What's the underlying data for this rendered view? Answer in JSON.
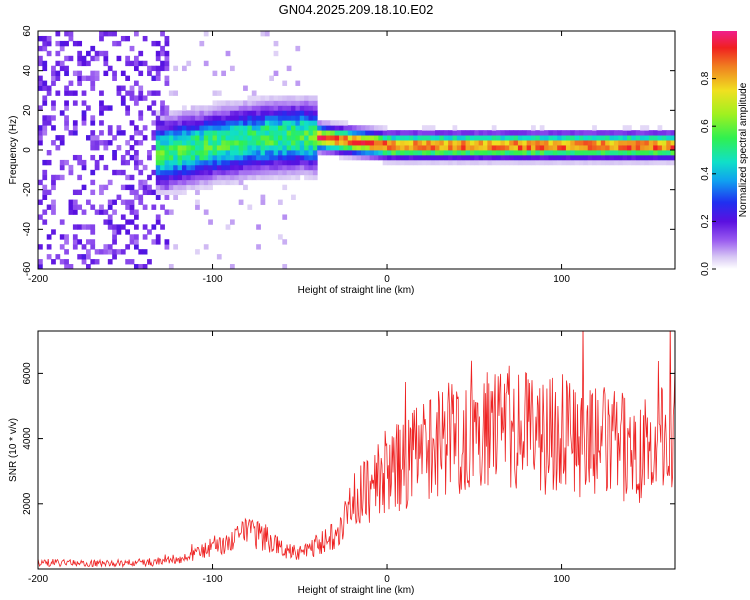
{
  "figure_title": "GN04.2025.209.18.10.E02",
  "chart_data": [
    {
      "type": "heatmap",
      "xlabel": "Height of straight line (km)",
      "ylabel": "Frequency (Hz)",
      "xlim": [
        -200,
        165
      ],
      "ylim": [
        -60,
        60
      ],
      "x_ticks": [
        -200,
        -100,
        0,
        100
      ],
      "y_ticks": [
        -60,
        -40,
        -20,
        0,
        20,
        40,
        60
      ],
      "colorbar": {
        "label": "Normalized spectral amplitude",
        "range": [
          0,
          1
        ],
        "ticks": [
          "0.0",
          "0.2",
          "0.4",
          "0.6",
          "0.8"
        ]
      },
      "dominant_frequency_trace": {
        "x": [
          -130,
          -110,
          -90,
          -70,
          -50,
          -40,
          -20,
          0,
          20,
          40,
          60,
          80,
          100,
          120,
          140,
          165
        ],
        "y": [
          -3,
          0,
          3,
          5,
          6,
          5,
          3,
          1,
          1,
          1,
          1,
          1,
          1,
          1,
          1,
          1
        ]
      },
      "noise_region_x": [
        -200,
        -125
      ],
      "grid": false
    },
    {
      "type": "line",
      "xlabel": "Height of straight line (km)",
      "ylabel": "SNR (10 * v/v)",
      "xlim": [
        -200,
        165
      ],
      "ylim": [
        0,
        7300
      ],
      "x_ticks": [
        -200,
        -100,
        0,
        100
      ],
      "y_ticks": [
        2000,
        4000,
        6000
      ],
      "series": [
        {
          "color": "#ee2222",
          "x": [
            -200,
            -180,
            -160,
            -140,
            -120,
            -110,
            -100,
            -90,
            -80,
            -70,
            -60,
            -50,
            -40,
            -30,
            -20,
            -10,
            0,
            10,
            20,
            30,
            40,
            50,
            60,
            70,
            80,
            90,
            100,
            110,
            120,
            130,
            140,
            150,
            160,
            165
          ],
          "values": [
            200,
            180,
            170,
            200,
            250,
            450,
            700,
            800,
            1100,
            1000,
            600,
            500,
            700,
            1100,
            2000,
            2500,
            3000,
            3200,
            3600,
            4000,
            4100,
            4200,
            4300,
            4300,
            4200,
            4100,
            4400,
            4000,
            3900,
            3800,
            3700,
            3600,
            4000,
            4300
          ]
        }
      ],
      "grid": false
    }
  ]
}
